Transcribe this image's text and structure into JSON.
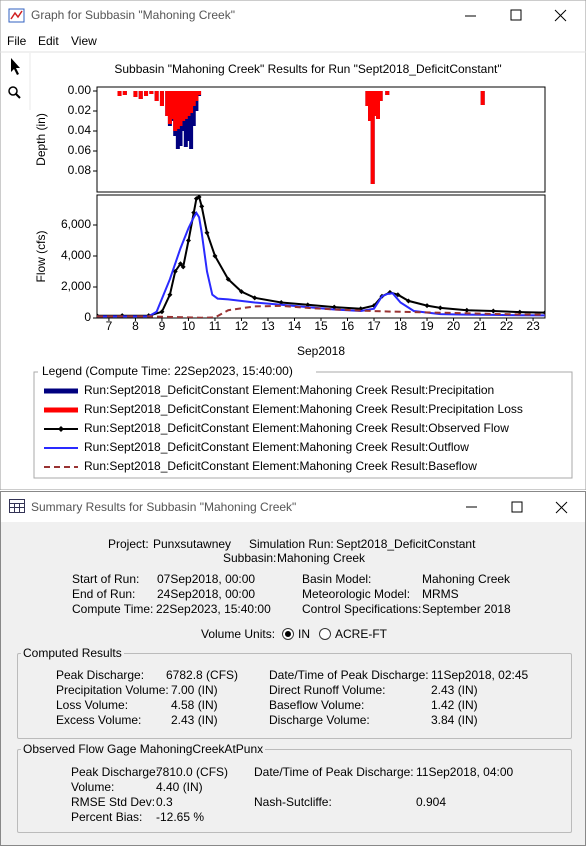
{
  "graph_window": {
    "title": "Graph for Subbasin \"Mahoning Creek\"",
    "menu": [
      "File",
      "Edit",
      "View"
    ]
  },
  "chart_data": [
    {
      "type": "bar",
      "title": "Subbasin \"Mahoning Creek\" Results for Run \"Sept2018_DeficitConstant\"",
      "ylabel": "Depth (in)",
      "y_inverted": true,
      "xlim": [
        7.05,
        23.95
      ],
      "ylim": [
        -0.004,
        0.101
      ],
      "yticks": [
        {
          "value": 0,
          "label": "0.00"
        },
        0.02,
        0.04,
        0.06,
        0.08
      ],
      "x": [
        7.9,
        8.1,
        8.5,
        8.7,
        8.9,
        9.1,
        9.3,
        9.5,
        9.7,
        9.8,
        9.9,
        10.0,
        10.1,
        10.2,
        10.3,
        10.4,
        10.5,
        10.6,
        10.7,
        10.8,
        10.9,
        17.25,
        17.35,
        17.45,
        17.5,
        17.55,
        17.65,
        17.75,
        18.0,
        21.6
      ],
      "series": [
        {
          "name": "Run:Sept2018_DeficitConstant Element:Mahoning Creek Result:Precipitation",
          "color": "#00007f",
          "values": [
            0.005,
            0.004,
            0.006,
            0.008,
            0.005,
            0.003,
            0.01,
            0.015,
            0.025,
            0.035,
            0.03,
            0.045,
            0.058,
            0.055,
            0.04,
            0.056,
            0.05,
            0.058,
            0.035,
            0.02,
            0.005,
            0.015,
            0.03,
            0.093,
            0.025,
            0.02,
            0.028,
            0.01,
            0.004,
            0.014
          ]
        },
        {
          "name": "Run:Sept2018_DeficitConstant Element:Mahoning Creek Result:Precipitation Loss",
          "color": "#ff0000",
          "values": [
            0.005,
            0.004,
            0.006,
            0.008,
            0.005,
            0.003,
            0.01,
            0.015,
            0.025,
            0.033,
            0.028,
            0.04,
            0.038,
            0.035,
            0.03,
            0.028,
            0.025,
            0.022,
            0.015,
            0.01,
            0.004,
            0.015,
            0.03,
            0.093,
            0.025,
            0.02,
            0.028,
            0.01,
            0.004,
            0.014
          ]
        }
      ]
    },
    {
      "type": "line",
      "ylabel": "Flow (cfs)",
      "xlabel": "Sep2018",
      "xlim": [
        7.05,
        23.95
      ],
      "ylim": [
        0,
        7935
      ],
      "yticks": [
        0,
        {
          "value": 2000,
          "label": "2,000"
        },
        {
          "value": 4000,
          "label": "4,000"
        },
        {
          "value": 6000,
          "label": "6,000"
        }
      ],
      "xticks": [
        {
          "value": 7.5,
          "label": "7"
        },
        {
          "value": 8.5,
          "label": "8"
        },
        {
          "value": 9.5,
          "label": "9"
        },
        {
          "value": 10.5,
          "label": "10"
        },
        {
          "value": 11.5,
          "label": "11"
        },
        {
          "value": 12.5,
          "label": "12"
        },
        {
          "value": 13.5,
          "label": "13"
        },
        {
          "value": 14.5,
          "label": "14"
        },
        {
          "value": 15.5,
          "label": "15"
        },
        {
          "value": 16.5,
          "label": "16"
        },
        {
          "value": 17.5,
          "label": "17"
        },
        {
          "value": 18.5,
          "label": "18"
        },
        {
          "value": 19.5,
          "label": "19"
        },
        {
          "value": 20.5,
          "label": "20"
        },
        {
          "value": 21.5,
          "label": "21"
        },
        {
          "value": 22.5,
          "label": "22"
        },
        {
          "value": 23.5,
          "label": "23"
        }
      ],
      "series": [
        {
          "name": "Run:Sept2018_DeficitConstant Element:Mahoning Creek Result:Observed Flow",
          "color": "#000000",
          "marker": "diamond",
          "x": [
            7.05,
            8,
            9,
            9.5,
            9.8,
            10.0,
            10.2,
            10.3,
            10.5,
            10.7,
            10.8,
            10.9,
            11.0,
            11.2,
            11.5,
            12,
            12.5,
            13,
            14,
            15,
            16,
            17,
            17.5,
            17.8,
            18.1,
            18.4,
            18.8,
            19.5,
            20,
            21,
            22,
            23,
            23.95
          ],
          "values": [
            150,
            150,
            150,
            400,
            1500,
            3000,
            3500,
            3300,
            5000,
            6800,
            7700,
            7810,
            7200,
            5500,
            4000,
            2500,
            1700,
            1300,
            1000,
            850,
            700,
            600,
            800,
            1400,
            1650,
            1500,
            1100,
            800,
            650,
            500,
            450,
            380,
            350
          ]
        },
        {
          "name": "Run:Sept2018_DeficitConstant Element:Mahoning Creek Result:Outflow",
          "color": "#2a2aff",
          "x": [
            7.05,
            9,
            9.3,
            9.8,
            10.2,
            10.5,
            10.7,
            10.8,
            10.9,
            11.0,
            11.2,
            11.4,
            11.6,
            12,
            13,
            14,
            15,
            16,
            17,
            17.5,
            17.8,
            18,
            18.2,
            18.5,
            19,
            20,
            21,
            22,
            23,
            23.95
          ],
          "values": [
            100,
            100,
            400,
            2500,
            4500,
            5800,
            6500,
            6780,
            6500,
            5500,
            3000,
            1500,
            1250,
            1200,
            1000,
            850,
            700,
            550,
            450,
            600,
            1400,
            1550,
            1600,
            1000,
            450,
            250,
            220,
            200,
            180,
            170
          ]
        },
        {
          "name": "Run:Sept2018_DeficitConstant Element:Mahoning Creek Result:Baseflow",
          "color": "#993333",
          "dash": true,
          "x": [
            7.05,
            9,
            10,
            11,
            11.5,
            12,
            13,
            14,
            15,
            16,
            17,
            18,
            19,
            20,
            21,
            22,
            23,
            23.95
          ],
          "values": [
            100,
            100,
            60,
            20,
            30,
            500,
            750,
            780,
            650,
            550,
            480,
            420,
            380,
            340,
            300,
            260,
            230,
            210
          ]
        }
      ]
    }
  ],
  "legend": {
    "title": "Legend (Compute Time: 22Sep2023, 15:40:00)"
  },
  "summary_window": {
    "title": "Summary Results for Subbasin \"Mahoning Creek\"",
    "header": [
      [
        "Project:",
        "Punxsutawney"
      ],
      [
        "Simulation Run:",
        "Sept2018_DeficitConstant"
      ],
      [
        "Subbasin:",
        "Mahoning Creek"
      ]
    ],
    "run_info": [
      [
        "Start of Run:",
        "07Sep2018, 00:00"
      ],
      [
        "End of Run:",
        "24Sep2018, 00:00"
      ],
      [
        "Compute Time:",
        "22Sep2023, 15:40:00"
      ],
      [
        "Basin Model:",
        "Mahoning Creek"
      ],
      [
        "Meteorologic Model:",
        "MRMS"
      ],
      [
        "Control Specifications:",
        "September 2018"
      ]
    ],
    "volume_units": {
      "label": "Volume Units:",
      "options": [
        "IN",
        "ACRE-FT"
      ]
    },
    "computed": {
      "title": "Computed Results",
      "items": [
        [
          "Peak Discharge:",
          "6782.8 (CFS)"
        ],
        [
          "Precipitation Volume:",
          "7.00 (IN)"
        ],
        [
          "Loss Volume:",
          "4.58 (IN)"
        ],
        [
          "Excess Volume:",
          "2.43 (IN)"
        ],
        [
          "Date/Time of Peak Discharge:",
          "11Sep2018, 02:45"
        ],
        [
          "Direct Runoff Volume:",
          "2.43 (IN)"
        ],
        [
          "Baseflow Volume:",
          "1.42 (IN)"
        ],
        [
          "Discharge Volume:",
          "3.84 (IN)"
        ]
      ]
    },
    "observed": {
      "title": "Observed Flow Gage MahoningCreekAtPunx",
      "items": [
        [
          "Peak Discharge:",
          "7810.0 (CFS)"
        ],
        [
          "Volume:",
          "4.40 (IN)"
        ],
        [
          "RMSE Std Dev:",
          "0.3"
        ],
        [
          "Percent Bias:",
          "-12.65 %"
        ],
        [
          "Date/Time of Peak Discharge:",
          "11Sep2018, 04:00"
        ],
        [
          "Nash-Sutcliffe:",
          "0.904"
        ]
      ]
    }
  }
}
